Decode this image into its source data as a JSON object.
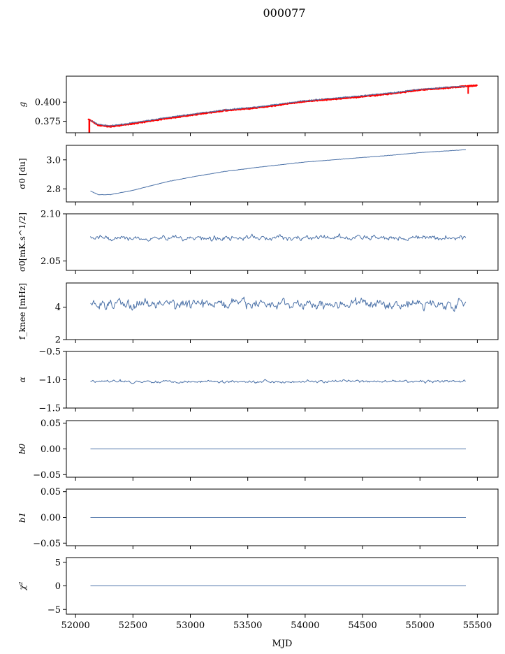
{
  "figure": {
    "title": "000077",
    "xlabel": "MJD"
  },
  "colors": {
    "series": "#4c72a8",
    "fit": "#ff0000",
    "axis": "#000000"
  },
  "chart_data": [
    {
      "type": "line",
      "ylabel": "g",
      "ylim": [
        0.36,
        0.434
      ],
      "yticks": [
        0.375,
        0.4
      ],
      "ytick_labels": [
        "0.375",
        "0.400"
      ],
      "x_range": [
        52130,
        55400
      ],
      "series": [
        {
          "values_desc": "noisy",
          "x": [
            52130,
            52200,
            52300,
            52500,
            52800,
            53000,
            53300,
            53600,
            54000,
            54400,
            54800,
            55000,
            55400
          ],
          "y": [
            0.376,
            0.371,
            0.369,
            0.373,
            0.38,
            0.384,
            0.39,
            0.394,
            0.402,
            0.407,
            0.413,
            0.417,
            0.421
          ]
        },
        {
          "values_desc": "fit",
          "x": [
            52110,
            52200,
            52300,
            52500,
            52800,
            53000,
            53300,
            53600,
            54000,
            54400,
            54800,
            55000,
            55420,
            55500
          ],
          "y": [
            0.378,
            0.37,
            0.368,
            0.372,
            0.379,
            0.383,
            0.389,
            0.393,
            0.401,
            0.406,
            0.412,
            0.416,
            0.421,
            0.422
          ]
        }
      ]
    },
    {
      "type": "line",
      "ylabel": "σ0 [du]",
      "ylim": [
        2.71,
        3.1
      ],
      "yticks": [
        2.8,
        3.0
      ],
      "ytick_labels": [
        "2.8",
        "3.0"
      ],
      "x": [
        52130,
        52200,
        52300,
        52500,
        52800,
        53000,
        53300,
        53600,
        54000,
        54400,
        54800,
        55000,
        55400
      ],
      "y": [
        2.785,
        2.76,
        2.76,
        2.79,
        2.85,
        2.88,
        2.92,
        2.95,
        2.985,
        3.01,
        3.035,
        3.05,
        3.07
      ]
    },
    {
      "type": "line",
      "ylabel": "σ0[mK.s^1/2]",
      "ylim": [
        2.04,
        2.1
      ],
      "yticks": [
        2.05,
        2.1
      ],
      "ytick_labels": [
        "2.05",
        "2.10"
      ],
      "x_range": [
        52130,
        55400
      ],
      "mean": 2.0745,
      "amplitude": 0.004
    },
    {
      "type": "line",
      "ylabel": "f_knee [mHz]",
      "ylim": [
        2,
        5.5
      ],
      "yticks": [
        2,
        4
      ],
      "ytick_labels": [
        "2",
        "4"
      ],
      "x_range": [
        52130,
        55400
      ],
      "mean": 4.2,
      "amplitude": 0.45
    },
    {
      "type": "line",
      "ylabel": "α",
      "ylim": [
        -1.5,
        -0.5
      ],
      "yticks": [
        -1.5,
        -1.0,
        -0.5
      ],
      "ytick_labels": [
        "−1.5",
        "−1.0",
        "−0.5"
      ],
      "x_range": [
        52130,
        55400
      ],
      "mean": -1.03,
      "amplitude": 0.035
    },
    {
      "type": "line",
      "ylabel": "b0",
      "ylim": [
        -0.055,
        0.055
      ],
      "yticks": [
        -0.05,
        0.0,
        0.05
      ],
      "ytick_labels": [
        "−0.05",
        "0.00",
        "0.05"
      ],
      "x": [
        52130,
        55400
      ],
      "y": [
        0,
        0
      ]
    },
    {
      "type": "line",
      "ylabel": "b1",
      "ylim": [
        -0.055,
        0.055
      ],
      "yticks": [
        -0.05,
        0.0,
        0.05
      ],
      "ytick_labels": [
        "−0.05",
        "0.00",
        "0.05"
      ],
      "x": [
        52130,
        55400
      ],
      "y": [
        0,
        0
      ]
    },
    {
      "type": "line",
      "ylabel": "χ²",
      "ylim": [
        -6,
        6
      ],
      "yticks": [
        -5,
        0,
        5
      ],
      "ytick_labels": [
        "−5",
        "0",
        "5"
      ],
      "x": [
        52130,
        55400
      ],
      "y": [
        0,
        0
      ]
    }
  ],
  "x_axis": {
    "xlim": [
      51920,
      55680
    ],
    "xticks": [
      52000,
      52500,
      53000,
      53500,
      54000,
      54500,
      55000,
      55500
    ],
    "xtick_labels": [
      "52000",
      "52500",
      "53000",
      "53500",
      "54000",
      "54500",
      "55000",
      "55500"
    ]
  }
}
